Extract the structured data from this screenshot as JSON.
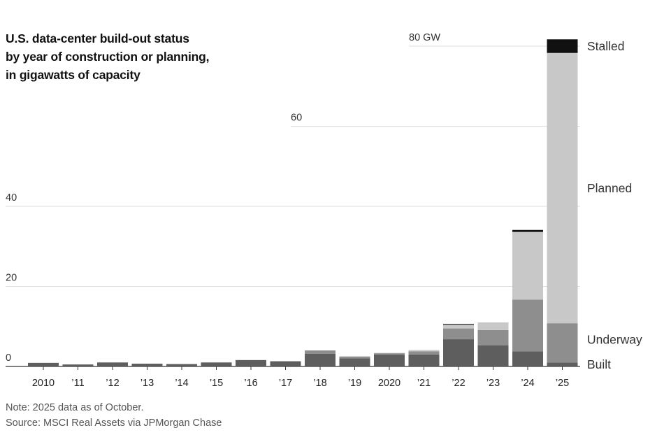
{
  "chart_data": {
    "type": "bar",
    "stacked": true,
    "title_lines": [
      "U.S. data-center build-out status",
      "by year of construction or planning,",
      "in gigawatts of capacity"
    ],
    "categories": [
      "2010",
      "’11",
      "’12",
      "’13",
      "’14",
      "’15",
      "’16",
      "’17",
      "’18",
      "’19",
      "2020",
      "’21",
      "’22",
      "’23",
      "’24",
      "’25"
    ],
    "series": [
      {
        "name": "Built",
        "color": "#5e5e5e",
        "values": [
          0.9,
          0.5,
          1.0,
          0.7,
          0.6,
          1.0,
          1.6,
          1.3,
          3.2,
          2.0,
          3.0,
          3.0,
          6.8,
          5.3,
          3.8,
          1.0
        ]
      },
      {
        "name": "Underway",
        "color": "#8e8e8e",
        "values": [
          0,
          0,
          0,
          0,
          0,
          0,
          0,
          0,
          0.8,
          0.5,
          0.3,
          0.8,
          2.7,
          3.8,
          12.9,
          9.8
        ]
      },
      {
        "name": "Planned",
        "color": "#c8c8c8",
        "values": [
          0,
          0,
          0,
          0,
          0,
          0,
          0,
          0,
          0,
          0,
          0.1,
          0.3,
          0.9,
          1.9,
          16.9,
          67.5
        ]
      },
      {
        "name": "Stalled",
        "color": "#111111",
        "values": [
          0,
          0,
          0,
          0,
          0,
          0,
          0,
          0,
          0,
          0,
          0,
          0,
          0.2,
          0,
          0.5,
          3.4
        ]
      }
    ],
    "y_ticks": [
      {
        "value": 0,
        "label": "0"
      },
      {
        "value": 20,
        "label": "20"
      },
      {
        "value": 40,
        "label": "40"
      },
      {
        "value": 60,
        "label": "60"
      },
      {
        "value": 80,
        "label": "80 GW"
      }
    ],
    "ylim": [
      0,
      80
    ],
    "grid": true,
    "legend": "direct-labels-right",
    "notes": [
      "Note: 2025 data as of October.",
      "Source: MSCI Real Assets via JPMorgan Chase"
    ]
  }
}
